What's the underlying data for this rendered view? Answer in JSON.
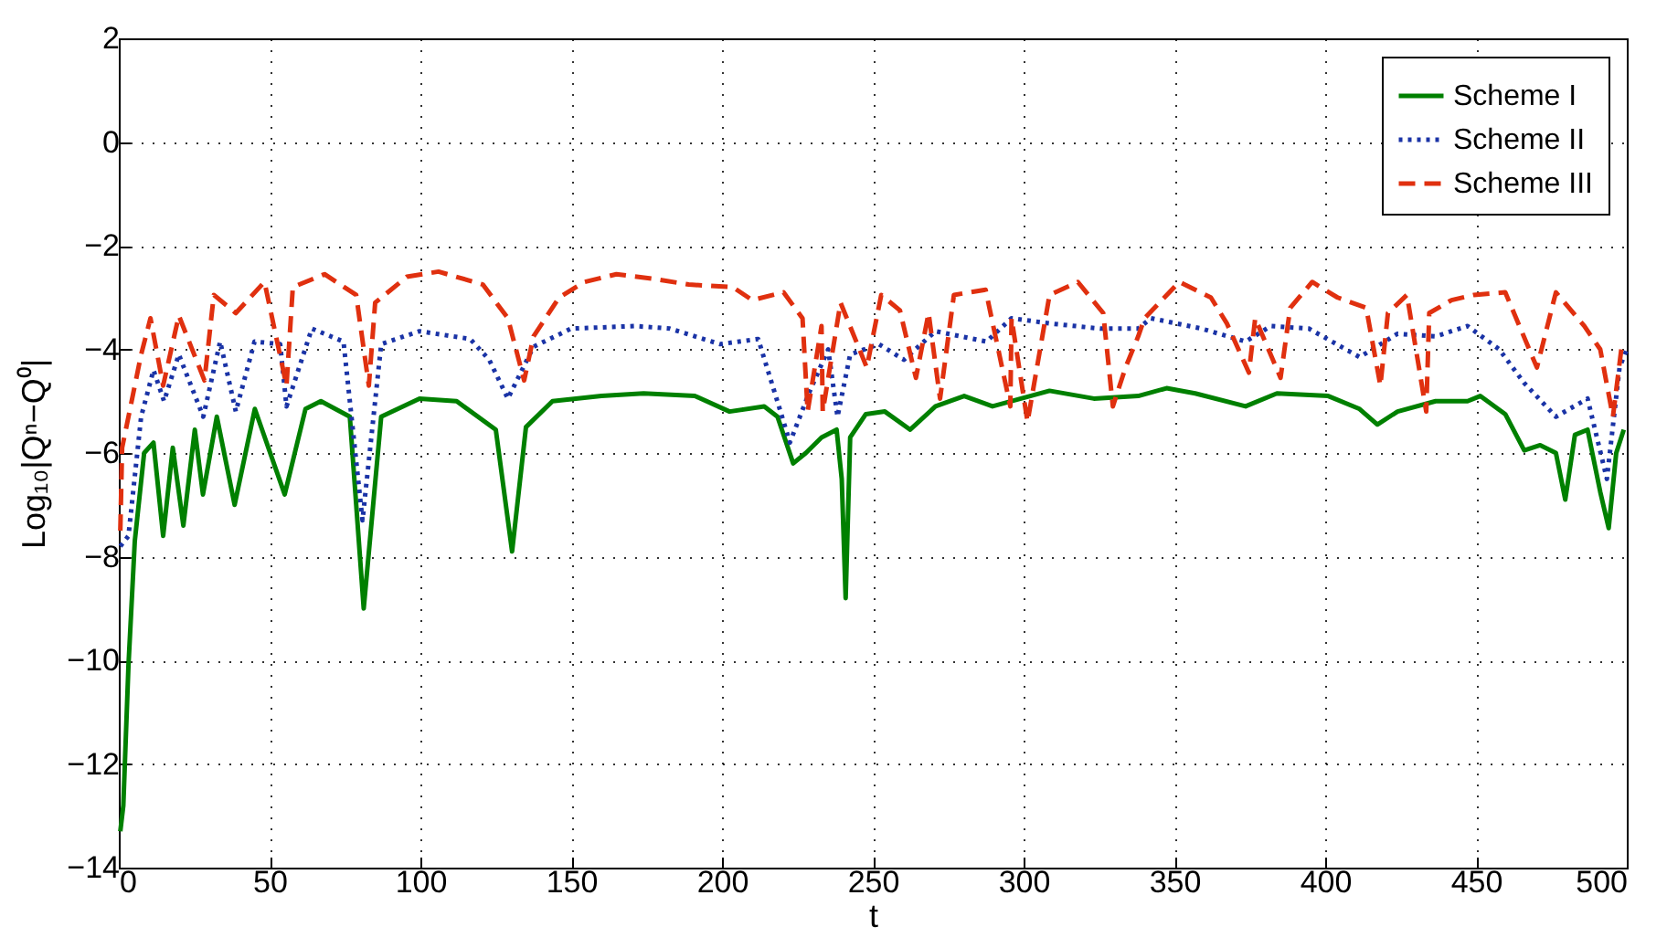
{
  "chart_data": {
    "type": "line",
    "xlabel": "t",
    "ylabel": "Log₁₀|Qⁿ−Q⁰|",
    "xlim": [
      0,
      500
    ],
    "xticks": [
      0,
      50,
      100,
      150,
      200,
      250,
      300,
      350,
      400,
      450,
      500
    ],
    "ylim": [
      -14,
      2
    ],
    "yticks": [
      -14,
      -12,
      -10,
      -8,
      -6,
      -4,
      -2,
      0,
      2
    ],
    "grid": true,
    "legend": "top right",
    "marker": "none",
    "series": [
      {
        "name": "Scheme I",
        "color": "#008000",
        "line_style": "solid",
        "x": [
          0.5,
          1.5,
          3.2,
          5.3,
          8.4,
          11.5,
          14.7,
          17.9,
          21.4,
          25.2,
          27.9,
          32.5,
          38.4,
          45.1,
          55,
          61.9,
          67,
          76.6,
          81.2,
          87,
          99.7,
          112,
          125,
          130.4,
          135,
          143.8,
          160,
          174,
          191,
          202.5,
          214,
          218.4,
          223.6,
          227.8,
          233,
          238,
          239.7,
          241,
          242.5,
          247.7,
          254,
          262.4,
          270.8,
          280.3,
          289.7,
          308.6,
          323.3,
          338,
          347.4,
          356.9,
          373.6,
          384,
          401,
          411.4,
          417.3,
          424,
          436.6,
          447.2,
          451.4,
          459.7,
          466,
          471.3,
          476.5,
          479.6,
          482.8,
          487,
          491.2,
          494,
          496.5,
          499
        ],
        "values": [
          -13.3,
          -12.8,
          -10.1,
          -7.7,
          -6.0,
          -5.8,
          -7.6,
          -5.9,
          -7.4,
          -5.55,
          -6.8,
          -5.3,
          -7.0,
          -5.15,
          -6.8,
          -5.15,
          -5.0,
          -5.3,
          -9.0,
          -5.3,
          -4.95,
          -5.0,
          -5.55,
          -7.9,
          -5.5,
          -5.0,
          -4.9,
          -4.85,
          -4.9,
          -5.2,
          -5.1,
          -5.3,
          -6.2,
          -6.0,
          -5.7,
          -5.55,
          -6.5,
          -8.8,
          -5.7,
          -5.25,
          -5.2,
          -5.55,
          -5.1,
          -4.9,
          -5.1,
          -4.8,
          -4.95,
          -4.9,
          -4.75,
          -4.85,
          -5.1,
          -4.85,
          -4.9,
          -5.15,
          -5.45,
          -5.2,
          -5.0,
          -5.0,
          -4.9,
          -5.25,
          -5.95,
          -5.85,
          -6.0,
          -6.9,
          -5.65,
          -5.55,
          -6.75,
          -7.45,
          -6.0,
          -5.55
        ]
      },
      {
        "name": "Scheme II",
        "color": "#1a33a6",
        "line_style": "dotted",
        "x": [
          0.5,
          3.2,
          7.4,
          11.5,
          15,
          19.9,
          28,
          33.6,
          38.8,
          45,
          53.5,
          55.6,
          64,
          74.5,
          80.8,
          87,
          99.7,
          116.5,
          122.8,
          129,
          137.5,
          150,
          171,
          182.7,
          199.4,
          212,
          219.4,
          222.5,
          228.8,
          235.2,
          238.3,
          242.5,
          252,
          260.3,
          270.8,
          287.7,
          296,
          308.6,
          325.4,
          338,
          342.2,
          359,
          373.6,
          382,
          394.6,
          411.4,
          424,
          436.6,
          447.2,
          457.7,
          466,
          476.5,
          487,
          493.4,
          497.6,
          500
        ],
        "values": [
          -7.8,
          -7.6,
          -5.3,
          -4.4,
          -5.0,
          -4.1,
          -5.3,
          -3.85,
          -5.2,
          -3.85,
          -3.9,
          -5.1,
          -3.6,
          -3.85,
          -7.3,
          -3.9,
          -3.65,
          -3.8,
          -4.2,
          -4.95,
          -3.95,
          -3.6,
          -3.55,
          -3.6,
          -3.9,
          -3.8,
          -5.2,
          -5.8,
          -4.85,
          -4.0,
          -5.3,
          -4.1,
          -3.9,
          -4.2,
          -3.65,
          -3.85,
          -3.4,
          -3.5,
          -3.6,
          -3.6,
          -3.4,
          -3.6,
          -3.85,
          -3.55,
          -3.6,
          -4.15,
          -3.7,
          -3.75,
          -3.55,
          -4.0,
          -4.65,
          -5.3,
          -4.95,
          -6.5,
          -4.35,
          -4.0
        ]
      },
      {
        "name": "Scheme III",
        "color": "#e0300f",
        "line_style": "dashed",
        "x": [
          0.5,
          1.1,
          7.4,
          10.5,
          14.7,
          19.9,
          28.4,
          31.5,
          38.8,
          48.3,
          55.6,
          57.7,
          68.2,
          78.7,
          82.9,
          85,
          95.5,
          106,
          120.7,
          129,
          134.4,
          137.5,
          146,
          154.4,
          165,
          178.5,
          189,
          203.6,
          210,
          220.4,
          226.7,
          228.4,
          233,
          233.4,
          239.3,
          248,
          252.8,
          259,
          264.3,
          268.5,
          272.3,
          276.9,
          287.4,
          295.6,
          296,
          301.3,
          308.6,
          318,
          326.4,
          329.6,
          333.8,
          338,
          340.1,
          351.6,
          362.1,
          367.4,
          374.7,
          376.8,
          385.2,
          388.4,
          395.7,
          404.1,
          413.6,
          418.3,
          420.8,
          427.1,
          433.5,
          434.5,
          441.9,
          449.3,
          459.7,
          470.2,
          476.5,
          485.9,
          491.2,
          495.4,
          498.5
        ],
        "values": [
          -7.5,
          -5.9,
          -4.1,
          -3.4,
          -4.7,
          -3.35,
          -4.6,
          -2.95,
          -3.3,
          -2.7,
          -4.7,
          -2.8,
          -2.55,
          -2.95,
          -4.7,
          -3.1,
          -2.6,
          -2.5,
          -2.75,
          -3.4,
          -4.6,
          -3.75,
          -3.0,
          -2.7,
          -2.55,
          -2.65,
          -2.75,
          -2.8,
          -3.05,
          -2.9,
          -3.4,
          -5.2,
          -3.55,
          -5.2,
          -3.1,
          -4.35,
          -2.95,
          -3.25,
          -4.55,
          -3.3,
          -4.95,
          -2.95,
          -2.85,
          -5.1,
          -3.4,
          -5.4,
          -2.95,
          -2.7,
          -3.3,
          -5.1,
          -4.35,
          -3.75,
          -3.4,
          -2.7,
          -3.0,
          -3.5,
          -4.45,
          -3.4,
          -4.55,
          -3.2,
          -2.7,
          -3.0,
          -3.2,
          -4.7,
          -3.3,
          -2.95,
          -5.2,
          -3.3,
          -3.05,
          -2.95,
          -2.9,
          -4.35,
          -2.9,
          -3.55,
          -4.0,
          -5.3,
          -3.85
        ]
      }
    ]
  }
}
